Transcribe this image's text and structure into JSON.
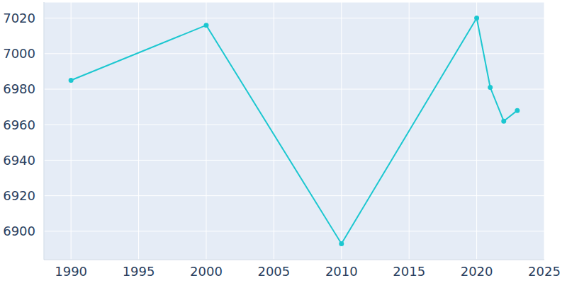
{
  "chart_data": {
    "type": "line",
    "x": [
      1990,
      2000,
      2010,
      2020,
      2021,
      2022,
      2023
    ],
    "values": [
      6985,
      7016,
      6893,
      7020,
      6981,
      6962,
      6968
    ],
    "color": "#1cc7d0",
    "marker": "circle",
    "xlim": [
      1988,
      2025
    ],
    "xticks": [
      1990,
      1995,
      2000,
      2005,
      2010,
      2015,
      2020,
      2025
    ],
    "ylim": [
      6884,
      7029
    ],
    "yticks": [
      6900,
      6920,
      6940,
      6960,
      6980,
      7000,
      7020
    ],
    "grid": true
  }
}
